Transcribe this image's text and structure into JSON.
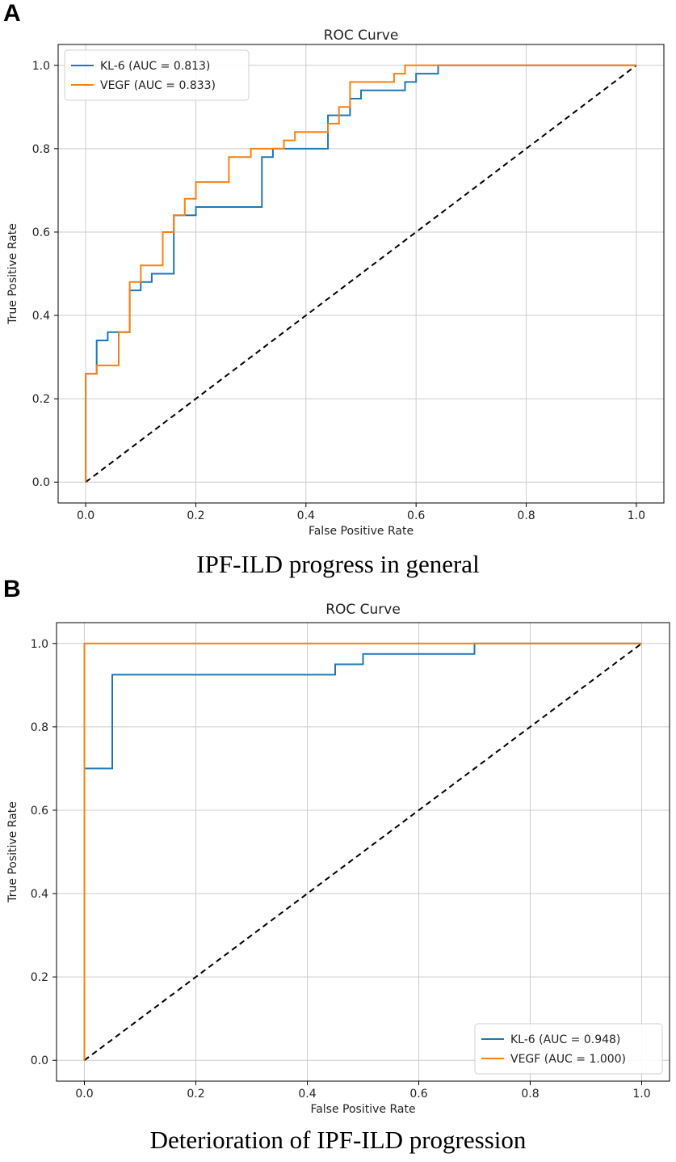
{
  "panels": [
    {
      "letter": "A",
      "caption": "IPF-ILD progress in general"
    },
    {
      "letter": "B",
      "caption": "Deterioration of IPF-ILD progression"
    }
  ],
  "colors": {
    "kl6": "#1f77b4",
    "vegf": "#ff7f0e",
    "chance": "#000000",
    "grid": "#cccccc"
  },
  "chart_data": [
    {
      "type": "line",
      "title": "ROC Curve",
      "xlabel": "False Positive Rate",
      "ylabel": "True Positive Rate",
      "xlim": [
        -0.05,
        1.05
      ],
      "ylim": [
        -0.05,
        1.05
      ],
      "xticks": [
        "0.0",
        "0.2",
        "0.4",
        "0.6",
        "0.8",
        "1.0"
      ],
      "yticks": [
        "0.0",
        "0.2",
        "0.4",
        "0.6",
        "0.8",
        "1.0"
      ],
      "grid": true,
      "legend_loc": "upper-left",
      "series": [
        {
          "name": "KL-6 (AUC = 0.813)",
          "x": [
            0,
            0,
            0.02,
            0.02,
            0.04,
            0.04,
            0.08,
            0.08,
            0.1,
            0.1,
            0.12,
            0.12,
            0.16,
            0.16,
            0.2,
            0.2,
            0.32,
            0.32,
            0.34,
            0.34,
            0.44,
            0.44,
            0.48,
            0.48,
            0.5,
            0.5,
            0.58,
            0.58,
            0.6,
            0.6,
            0.64,
            0.64,
            1.0
          ],
          "y": [
            0,
            0.26,
            0.26,
            0.34,
            0.34,
            0.36,
            0.36,
            0.46,
            0.46,
            0.48,
            0.48,
            0.5,
            0.5,
            0.64,
            0.64,
            0.66,
            0.66,
            0.78,
            0.78,
            0.8,
            0.8,
            0.88,
            0.88,
            0.92,
            0.92,
            0.94,
            0.94,
            0.96,
            0.96,
            0.98,
            0.98,
            1.0,
            1.0
          ]
        },
        {
          "name": "VEGF (AUC = 0.833)",
          "x": [
            0,
            0,
            0.02,
            0.02,
            0.06,
            0.06,
            0.08,
            0.08,
            0.1,
            0.1,
            0.14,
            0.14,
            0.16,
            0.16,
            0.18,
            0.18,
            0.2,
            0.2,
            0.26,
            0.26,
            0.3,
            0.3,
            0.36,
            0.36,
            0.38,
            0.38,
            0.44,
            0.44,
            0.46,
            0.46,
            0.48,
            0.48,
            0.56,
            0.56,
            0.58,
            0.58,
            1.0
          ],
          "y": [
            0,
            0.26,
            0.26,
            0.28,
            0.28,
            0.36,
            0.36,
            0.48,
            0.48,
            0.52,
            0.52,
            0.6,
            0.6,
            0.64,
            0.64,
            0.68,
            0.68,
            0.72,
            0.72,
            0.78,
            0.78,
            0.8,
            0.8,
            0.82,
            0.82,
            0.84,
            0.84,
            0.86,
            0.86,
            0.9,
            0.9,
            0.96,
            0.96,
            0.98,
            0.98,
            1.0,
            1.0
          ]
        }
      ]
    },
    {
      "type": "line",
      "title": "ROC Curve",
      "xlabel": "False Positive Rate",
      "ylabel": "True Positive Rate",
      "xlim": [
        -0.05,
        1.05
      ],
      "ylim": [
        -0.05,
        1.05
      ],
      "xticks": [
        "0.0",
        "0.2",
        "0.4",
        "0.6",
        "0.8",
        "1.0"
      ],
      "yticks": [
        "0.0",
        "0.2",
        "0.4",
        "0.6",
        "0.8",
        "1.0"
      ],
      "grid": true,
      "legend_loc": "lower-right",
      "series": [
        {
          "name": "KL-6 (AUC = 0.948)",
          "x": [
            0,
            0,
            0.05,
            0.05,
            0.45,
            0.45,
            0.5,
            0.5,
            0.7,
            0.7,
            1.0
          ],
          "y": [
            0,
            0.7,
            0.7,
            0.925,
            0.925,
            0.95,
            0.95,
            0.975,
            0.975,
            1.0,
            1.0
          ]
        },
        {
          "name": "VEGF (AUC = 1.000)",
          "x": [
            0,
            0,
            1.0
          ],
          "y": [
            0,
            1.0,
            1.0
          ]
        }
      ]
    }
  ]
}
